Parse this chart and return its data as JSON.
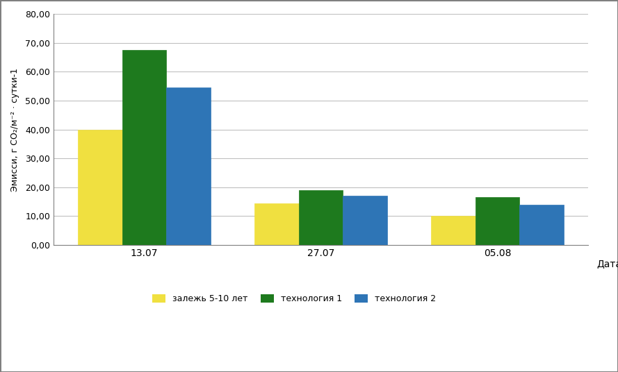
{
  "categories": [
    "13.07",
    "27.07",
    "05.08"
  ],
  "series": {
    "залежь 5-10 лет": [
      40.0,
      14.5,
      10.0
    ],
    "технология 1": [
      67.5,
      19.0,
      16.5
    ],
    "технология 2": [
      54.5,
      17.0,
      14.0
    ]
  },
  "colors": {
    "залежь 5-10 лет": "#f0e040",
    "технология 1": "#1e7a1e",
    "технология 2": "#2e75b6"
  },
  "ylabel": "Эмисси, г CO₂/м⁻² · сутки-1",
  "xlabel": "Дата",
  "ylim": [
    0,
    80
  ],
  "yticks": [
    0,
    10,
    20,
    30,
    40,
    50,
    60,
    70,
    80
  ],
  "ytick_labels": [
    "0,00",
    "10,00",
    "20,00",
    "30,00",
    "40,00",
    "50,00",
    "60,00",
    "70,00",
    "80,00"
  ],
  "bar_width": 0.25,
  "background_color": "#ffffff",
  "grid_color": "#c0c0c0",
  "border_color": "#808080"
}
